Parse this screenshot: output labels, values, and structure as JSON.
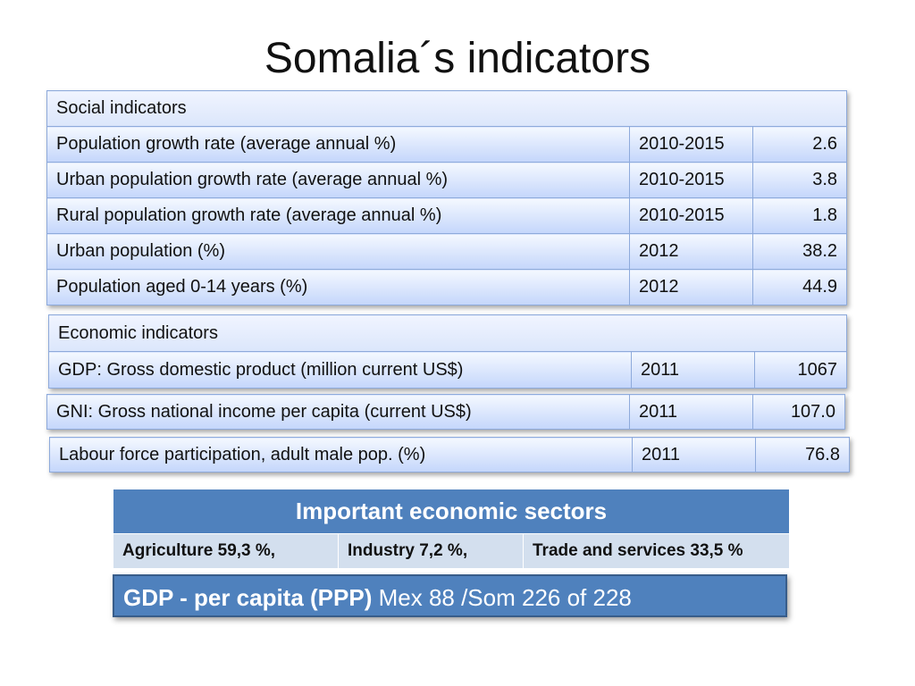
{
  "title": "Somalia´s indicators",
  "social": {
    "header": "Social indicators",
    "rows": [
      {
        "label": "Population growth rate (average annual %)",
        "period": "2010-2015",
        "value": "2.6"
      },
      {
        "label": "Urban population growth rate (average annual %)",
        "period": "2010-2015",
        "value": "3.8"
      },
      {
        "label": "Rural population growth rate (average annual %)",
        "period": "2010-2015",
        "value": "1.8"
      },
      {
        "label": "Urban population (%)",
        "period": "2012",
        "value": "38.2"
      },
      {
        "label": "Population aged 0-14 years (%)",
        "period": "2012",
        "value": "44.9"
      }
    ]
  },
  "economic": {
    "header": "Economic indicators",
    "gdp": {
      "label": "GDP: Gross domestic product (million current US$)",
      "period": "2011",
      "value": "1067"
    },
    "gni": {
      "label": "GNI: Gross national income per capita (current US$)",
      "period": "2011",
      "value": "107.0"
    },
    "labour": {
      "label": "Labour force participation, adult male pop. (%)",
      "period": "2011",
      "value": "76.8"
    }
  },
  "sectors": {
    "header": "Important economic sectors",
    "agriculture": "Agriculture 59,3 %,",
    "industry": "Industry 7,2 %,",
    "trade": "Trade and services 33,5 %"
  },
  "gdp_ppp": {
    "label": "GDP - per capita (PPP)",
    "value": " Mex 88 /Som 226 of 228"
  },
  "colors": {
    "accent": "#4f81bd",
    "row_fill": "#cddcf8",
    "sector_row": "#d3dfee"
  }
}
